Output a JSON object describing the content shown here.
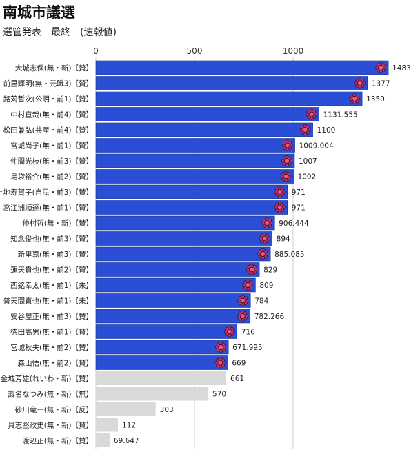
{
  "header": {
    "title": "南城市議選",
    "subtitle": "選管発表　最終　(速報値)"
  },
  "colors": {
    "elected_bar": "#2a4fd6",
    "not_elected_bar": "#d9d9d9",
    "elected_edge": "#1a2f86",
    "marker": "#c0306a",
    "grid": "#cccccc"
  },
  "chart_data": {
    "type": "bar",
    "orientation": "horizontal",
    "xticks": [
      "0",
      "500",
      "1000"
    ],
    "xlim": [
      0,
      1500
    ],
    "grid": true,
    "marker_icon": "rose-icon",
    "categories": [
      "大城志保(無・新)【賛】",
      "前里輝明(無・元職3)【賛】",
      "銘苅哲次(公明・前1)【賛】",
      "中村直哉(無・前4)【賛】",
      "松田兼弘(共産・前4)【賛】",
      "宮城尚子(無・前1)【賛】",
      "仲間光枝(無・前3)【賛】",
      "島袋裕介(無・前2)【賛】",
      "上地寿賀子(自民・前3)【賛】",
      "高江洲順達(無・前1)【賛】",
      "仲村哲(無・新)【賛】",
      "知念俊也(無・前3)【賛】",
      "新里嘉(無・前3)【賛】",
      "運天貴也(無・前2)【賛】",
      "西銘幸太(無・前1)【未】",
      "普天間直也(無・前1)【未】",
      "安谷屋正(無・前3)【賛】",
      "徳田高男(無・前1)【賛】",
      "宮城秋夫(無・前2)【賛】",
      "森山悟(無・前2)【賛】",
      "金城芳雄(れいわ・新)【賛】",
      "識名なつみ(無・新)【無】",
      "砂川竜一(無・新)【反】",
      "具志堅政史(無・新)【賛】",
      "渡辺正(無・新)【賛】"
    ],
    "values": [
      1483,
      1377,
      1350,
      1131.555,
      1100,
      1009.004,
      1007,
      1002,
      971,
      971,
      906.444,
      894,
      885.085,
      829,
      809,
      784,
      782.266,
      716,
      671.995,
      669,
      661,
      570,
      303,
      112,
      69.647
    ],
    "value_labels": [
      "1483",
      "1377",
      "1350",
      "1131.555",
      "1100",
      "1009.004",
      "1007",
      "1002",
      "971",
      "971",
      "906.444",
      "894",
      "885.085",
      "829",
      "809",
      "784",
      "782.266",
      "716",
      "671.995",
      "669",
      "661",
      "570",
      "303",
      "112",
      "69.647"
    ],
    "elected": [
      true,
      true,
      true,
      true,
      true,
      true,
      true,
      true,
      true,
      true,
      true,
      true,
      true,
      true,
      true,
      true,
      true,
      true,
      true,
      true,
      false,
      false,
      false,
      false,
      false
    ]
  }
}
